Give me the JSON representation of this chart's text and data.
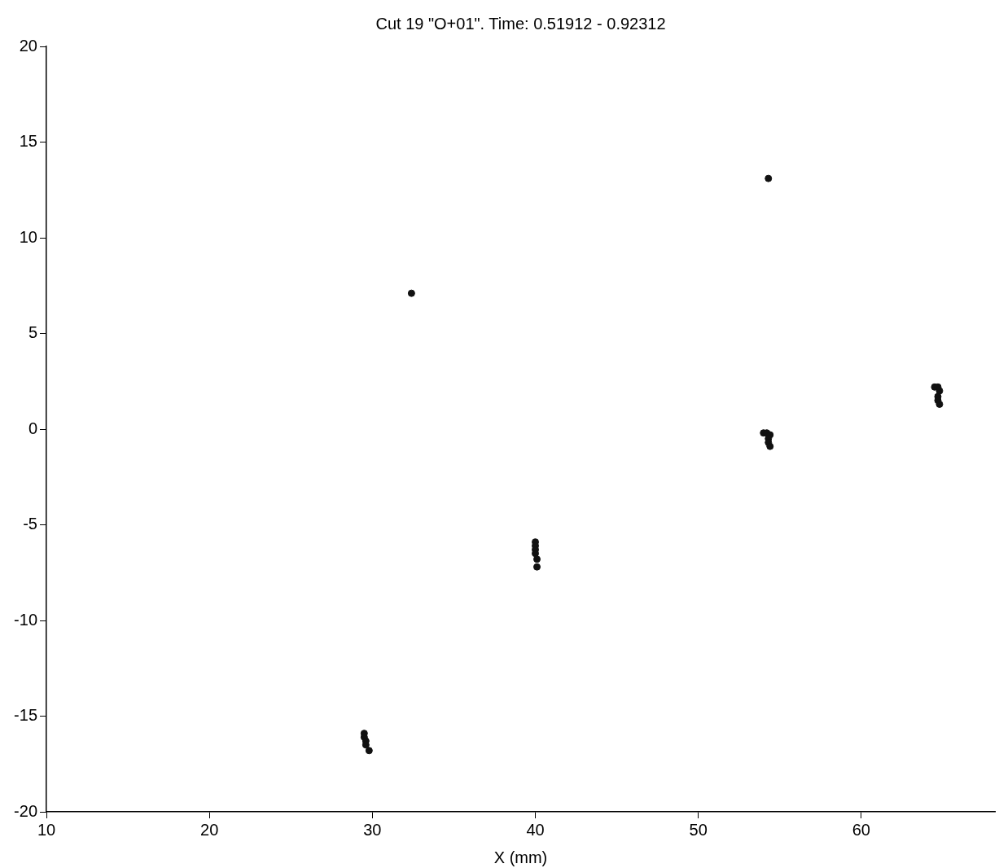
{
  "chart_data": {
    "type": "scatter",
    "title": "Cut 19 \"O+01\". Time: 0.51912 - 0.92312",
    "xlabel": "X (mm)",
    "x": [
      29.5,
      29.5,
      29.6,
      29.6,
      29.8,
      40.0,
      40.0,
      40.0,
      40.0,
      40.1,
      40.1,
      54.0,
      54.2,
      54.4,
      54.3,
      54.3,
      54.4,
      64.5,
      64.7,
      64.8,
      64.7,
      64.7,
      64.8,
      32.4,
      54.3
    ],
    "values": [
      -15.9,
      -16.1,
      -16.3,
      -16.5,
      -16.8,
      -5.9,
      -6.1,
      -6.3,
      -6.5,
      -6.8,
      -7.2,
      -0.2,
      -0.2,
      -0.3,
      -0.5,
      -0.7,
      -0.9,
      2.2,
      2.2,
      2.0,
      1.7,
      1.5,
      1.3,
      7.1,
      13.1
    ],
    "color": "#111111",
    "marker": "circle",
    "xlim": [
      10,
      68.2
    ],
    "xticks": [
      10,
      20,
      30,
      40,
      50,
      60
    ],
    "ylim": [
      -20,
      20
    ],
    "yticks": [
      -20,
      -15,
      -10,
      -5,
      0,
      5,
      10,
      15,
      20
    ],
    "grid": false
  }
}
